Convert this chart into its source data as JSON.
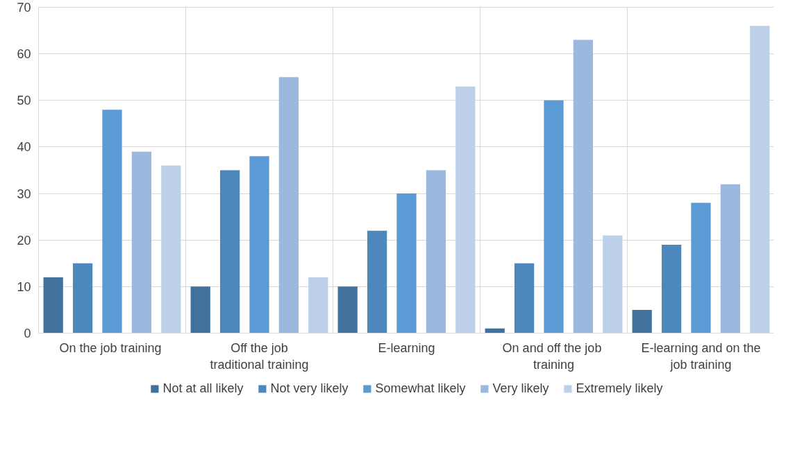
{
  "chart_data": {
    "type": "bar",
    "categories": [
      "On  the job training",
      "Off the job traditional training",
      "E-learning",
      "On and off the  job training",
      "E-learning and on the job training"
    ],
    "series": [
      {
        "name": "Not at all likely",
        "color": "#41719c",
        "values": [
          12,
          10,
          10,
          1,
          5
        ]
      },
      {
        "name": "Not very likely",
        "color": "#4e87bb",
        "values": [
          15,
          35,
          22,
          15,
          19
        ]
      },
      {
        "name": "Somewhat likely",
        "color": "#5b9bd5",
        "values": [
          48,
          38,
          30,
          50,
          28
        ]
      },
      {
        "name": "Very likely",
        "color": "#9bb8de",
        "values": [
          39,
          55,
          35,
          63,
          32
        ]
      },
      {
        "name": "Extremely likely",
        "color": "#bdd0ea",
        "values": [
          36,
          12,
          53,
          21,
          66
        ]
      }
    ],
    "ylim": [
      0,
      70
    ],
    "yticks": [
      0,
      10,
      20,
      30,
      40,
      50,
      60,
      70
    ],
    "grid": true,
    "legend": "bottom"
  }
}
